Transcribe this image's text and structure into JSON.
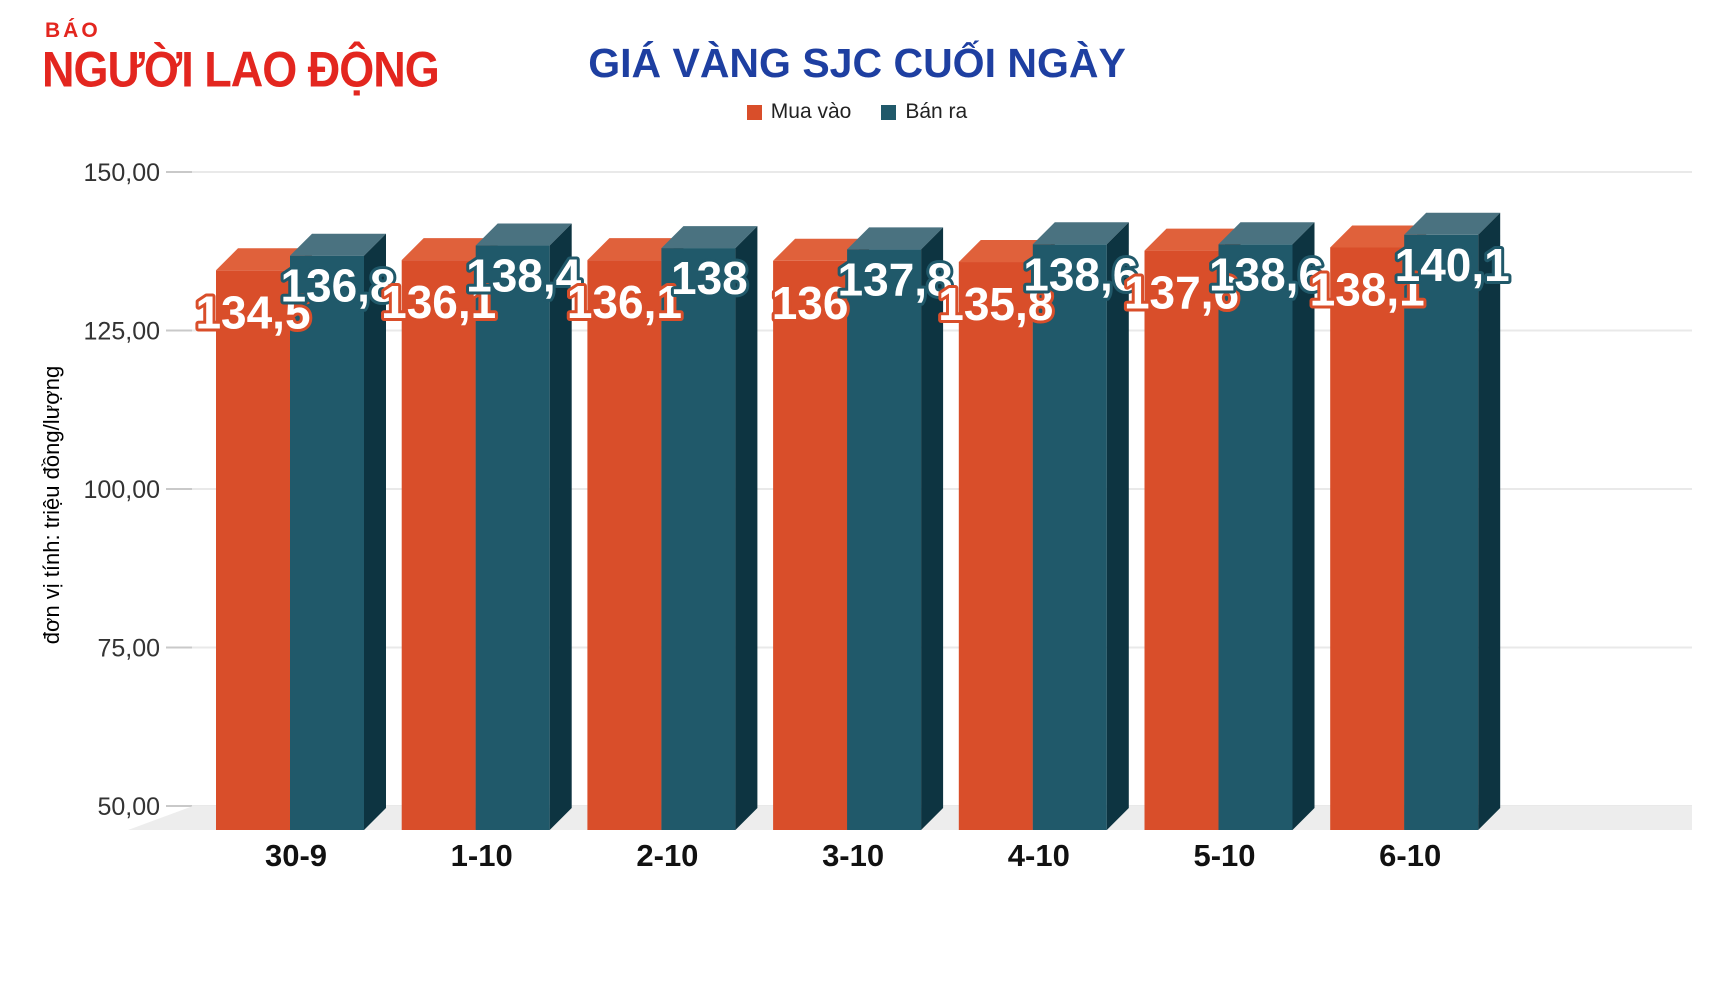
{
  "header": {
    "logo": {
      "top": "BÁO",
      "main": "NGƯỜI LAO ĐỘNG",
      "color": "#e3261f"
    }
  },
  "chart_data": {
    "type": "bar",
    "title": "GIÁ VÀNG SJC CUỐI NGÀY",
    "title_color": "#1e3fa1",
    "categories": [
      "30-9",
      "1-10",
      "2-10",
      "3-10",
      "4-10",
      "5-10",
      "6-10"
    ],
    "series": [
      {
        "name": "Mua vào",
        "color": "#d94e2a",
        "top_color": "#e0613b",
        "side_color": "#9e3515",
        "values": [
          134.5,
          136.1,
          136.1,
          136.0,
          135.8,
          137.6,
          138.1
        ],
        "value_labels": [
          "134,5",
          "136,1",
          "136,1",
          "136",
          "135,8",
          "137,6",
          "138,1"
        ]
      },
      {
        "name": "Bán ra",
        "color": "#20596a",
        "top_color": "#4a7280",
        "side_color": "#0d3441",
        "values": [
          136.8,
          138.4,
          138.0,
          137.8,
          138.6,
          138.6,
          140.1
        ],
        "value_labels": [
          "136,8",
          "138,4",
          "138",
          "137,8",
          "138,6",
          "138,6",
          "140,1"
        ]
      }
    ],
    "ylabel": "đơn vị tính: triệu đồng/lượng",
    "y_ticks": [
      {
        "label": "150,00",
        "value": 150
      },
      {
        "label": "125,00",
        "value": 125
      },
      {
        "label": "100,00",
        "value": 100
      },
      {
        "label": "75,00",
        "value": 75
      },
      {
        "label": "50,00",
        "value": 50
      }
    ],
    "ylim": [
      50,
      150
    ],
    "grid": true,
    "legend_position": "top-center"
  }
}
